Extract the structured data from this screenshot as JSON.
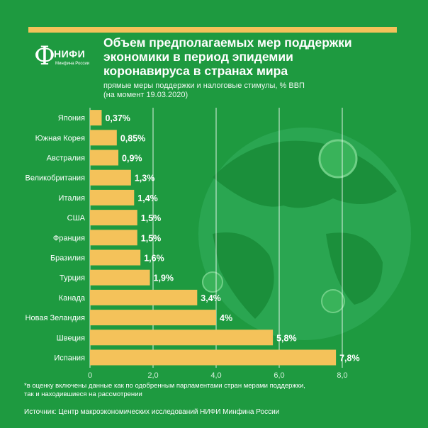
{
  "header": {
    "logo_mark": "Ф",
    "logo_text": "НИФИ",
    "logo_sub": "Минфина России",
    "title": "Объем предполагаемых мер поддержки\nэкономики в период эпидемии\nкоронавируса в странах мира",
    "subtitle": "прямые меры поддержки и налоговые стимулы, % ВВП\n(на момент 19.03.2020)"
  },
  "colors": {
    "background": "#1e9a40",
    "bar": "#f4c25a",
    "accent_bar": "#f4c25a",
    "globe": "#2fa653",
    "gridline": "#ffffff"
  },
  "chart_data": {
    "type": "bar",
    "orientation": "horizontal",
    "title": "Объем предполагаемых мер поддержки экономики в период эпидемии коронавируса в странах мира",
    "subtitle": "прямые меры поддержки и налоговые стимулы, % ВВП (на момент 19.03.2020)",
    "categories": [
      "Япония",
      "Южная Корея",
      "Австралия",
      "Великобритания",
      "Италия",
      "США",
      "Франция",
      "Бразилия",
      "Турция",
      "Канада",
      "Новая Зеландия",
      "Швеция",
      "Испания"
    ],
    "values": [
      0.37,
      0.85,
      0.9,
      1.3,
      1.4,
      1.5,
      1.5,
      1.6,
      1.9,
      3.4,
      4,
      5.8,
      7.8
    ],
    "value_labels": [
      "0,37%",
      "0,85%",
      "0,9%",
      "1,3%",
      "1,4%",
      "1,5%",
      "1,5%",
      "1,6%",
      "1,9%",
      "3,4%",
      "4%",
      "5,8%",
      "7,8%"
    ],
    "xlim": [
      0,
      8
    ],
    "xticks": [
      0,
      2,
      4,
      6,
      8
    ],
    "xtick_labels": [
      "0",
      "2,0",
      "4,0",
      "6,0",
      "8,0"
    ],
    "grid": true,
    "legend": "none"
  },
  "footnote": "*в оценку включены данные как по одобренным парламентами стран мерами поддержки,\nтак и находившиеся на рассмотрении",
  "source": "Источник: Центр макроэкономических исследований НИФИ Минфина России"
}
